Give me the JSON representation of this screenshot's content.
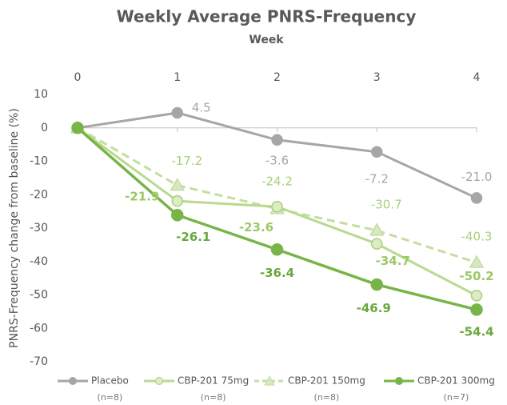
{
  "chart_data": {
    "type": "line",
    "title": "Weekly Average PNRS-Frequency",
    "subtitle": "Week",
    "y_label": "PNRS-Frequency change from baseline (%)",
    "x": [
      0,
      1,
      2,
      3,
      4
    ],
    "xlim": [
      0,
      4
    ],
    "xticks": [
      0,
      1,
      2,
      3,
      4
    ],
    "ylim": [
      -70,
      10
    ],
    "yticks": [
      10,
      0,
      -10,
      -20,
      -30,
      -40,
      -50,
      -60,
      -70
    ],
    "series": [
      {
        "name": "Placebo",
        "n": "(n=8)",
        "color": "#a6a6a6",
        "marker": "circle",
        "dashed": false,
        "values": [
          0,
          4.5,
          -3.6,
          -7.2,
          -21.0
        ],
        "value_labels": [
          null,
          "4.5",
          "-3.6",
          "-7.2",
          "-21.0"
        ]
      },
      {
        "name": "CBP-201 75mg",
        "n": "(n=8)",
        "color": "#b9d98f",
        "marker": "circle",
        "dashed": false,
        "values": [
          0,
          -21.9,
          -23.6,
          -34.7,
          -50.2
        ],
        "value_labels": [
          null,
          "-21.9",
          "-23.6",
          "-34.7",
          "-50.2"
        ]
      },
      {
        "name": "CBP-201 150mg",
        "n": "(n=8)",
        "color": "#c3dea0",
        "marker": "triangle",
        "dashed": true,
        "values": [
          0,
          -17.2,
          -24.2,
          -30.7,
          -40.3
        ],
        "value_labels": [
          null,
          "-17.2",
          "-24.2",
          "-30.7",
          "-40.3"
        ]
      },
      {
        "name": "CBP-201 300mg",
        "n": "(n=7)",
        "color": "#78b548",
        "marker": "circle",
        "dashed": false,
        "values": [
          0,
          -26.1,
          -36.4,
          -46.9,
          -54.4
        ],
        "value_labels": [
          null,
          "-26.1",
          "-36.4",
          "-46.9",
          "-54.4"
        ]
      }
    ]
  }
}
